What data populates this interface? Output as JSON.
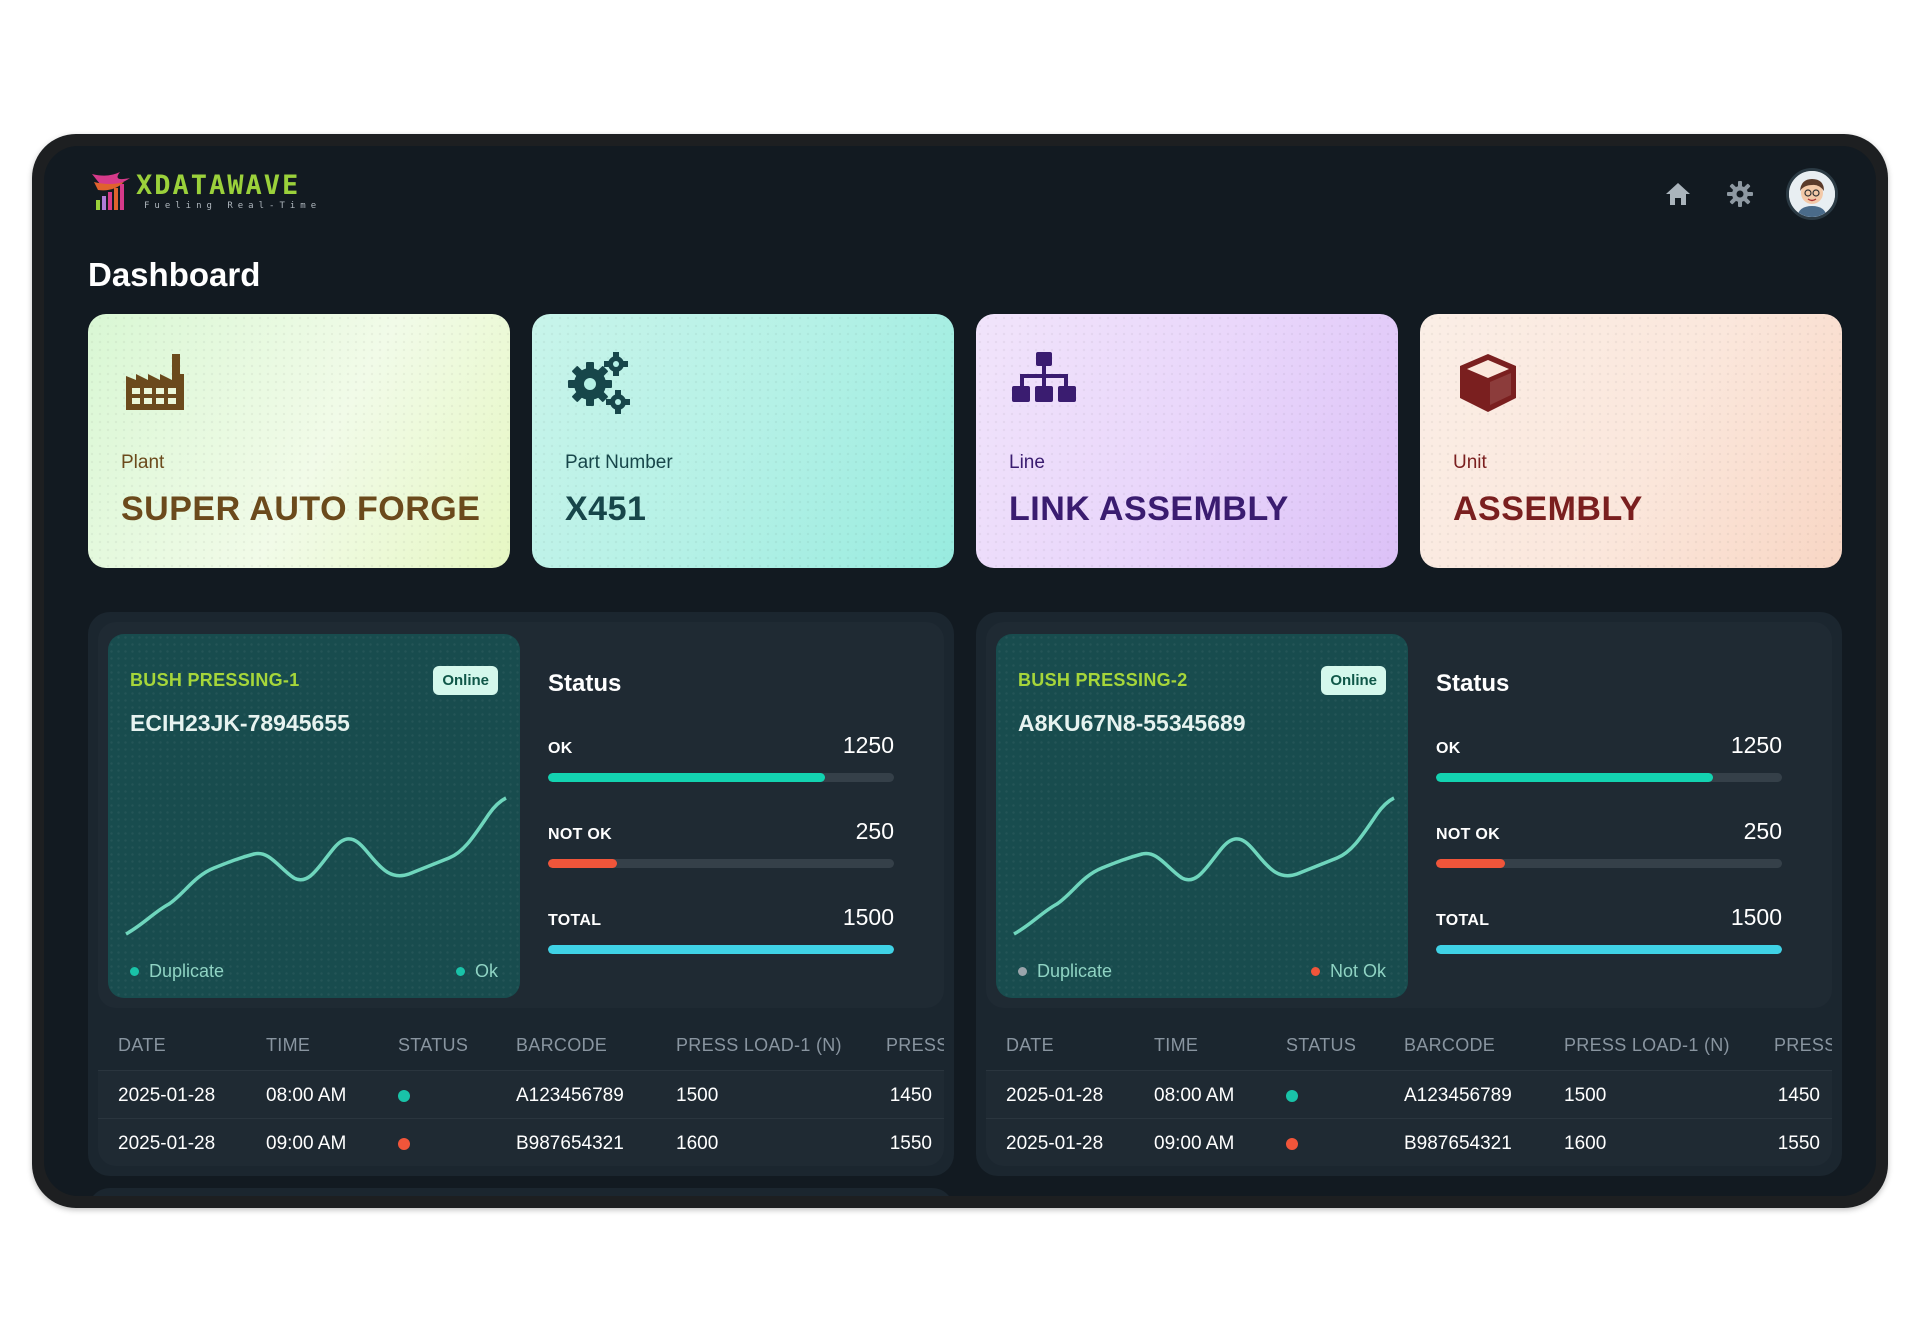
{
  "brand": {
    "name": "XDATAWAVE",
    "tagline": "Fueling Real-Time"
  },
  "header": {
    "icons": [
      "home-icon",
      "gear-icon",
      "avatar"
    ]
  },
  "page": {
    "title": "Dashboard"
  },
  "cards": [
    {
      "label": "Plant",
      "value": "SUPER AUTO FORGE",
      "icon": "factory-icon",
      "color": "#6b4a1c"
    },
    {
      "label": "Part Number",
      "value": "X451",
      "icon": "gears-icon",
      "color": "#17464a"
    },
    {
      "label": "Line",
      "value": "LINK ASSEMBLY",
      "icon": "hierarchy-icon",
      "color": "#3a1c70"
    },
    {
      "label": "Unit",
      "value": "ASSEMBLY",
      "icon": "cube-icon",
      "color": "#7a1f1f"
    }
  ],
  "machines": [
    {
      "name": "BUSH PRESSING-1",
      "serial": "ECIH23JK-78945655",
      "badge": "Online",
      "legend_left": "Duplicate",
      "legend_right": "Ok",
      "legend_left_color": "#19c3a8",
      "legend_right_color": "#19c3a8",
      "status": {
        "title": "Status",
        "ok": {
          "label": "OK",
          "value": "1250",
          "fraction": 0.8
        },
        "not_ok": {
          "label": "NOT OK",
          "value": "250",
          "fraction": 0.2
        },
        "total": {
          "label": "TOTAL",
          "value": "1500",
          "fraction": 1.0
        }
      },
      "table": {
        "headers": [
          "DATE",
          "TIME",
          "STATUS",
          "BARCODE",
          "PRESS LOAD-1 (N)",
          "PRESS"
        ],
        "rows": [
          {
            "date": "2025-01-28",
            "time": "08:00 AM",
            "status_color": "#19c3a8",
            "barcode": "A123456789",
            "load1": "1500",
            "load2": "1450"
          },
          {
            "date": "2025-01-28",
            "time": "09:00 AM",
            "status_color": "#f0553a",
            "barcode": "B987654321",
            "load1": "1600",
            "load2": "1550"
          }
        ]
      }
    },
    {
      "name": "BUSH PRESSING-2",
      "serial": "A8KU67N8-55345689",
      "badge": "Online",
      "legend_left": "Duplicate",
      "legend_right": "Not Ok",
      "legend_left_color": "#9aa4ab",
      "legend_right_color": "#f0553a",
      "status": {
        "title": "Status",
        "ok": {
          "label": "OK",
          "value": "1250",
          "fraction": 0.8
        },
        "not_ok": {
          "label": "NOT OK",
          "value": "250",
          "fraction": 0.2
        },
        "total": {
          "label": "TOTAL",
          "value": "1500",
          "fraction": 1.0
        }
      },
      "table": {
        "headers": [
          "DATE",
          "TIME",
          "STATUS",
          "BARCODE",
          "PRESS LOAD-1 (N)",
          "PRESS"
        ],
        "rows": [
          {
            "date": "2025-01-28",
            "time": "08:00 AM",
            "status_color": "#19c3a8",
            "barcode": "A123456789",
            "load1": "1500",
            "load2": "1450"
          },
          {
            "date": "2025-01-28",
            "time": "09:00 AM",
            "status_color": "#f0553a",
            "barcode": "B987654321",
            "load1": "1600",
            "load2": "1550"
          }
        ]
      }
    }
  ],
  "colors": {
    "ok_bar": "#13d3b1",
    "not_ok_bar": "#f0553a",
    "total_bar": "#3fd2e6",
    "line": "#6fd6bd"
  }
}
